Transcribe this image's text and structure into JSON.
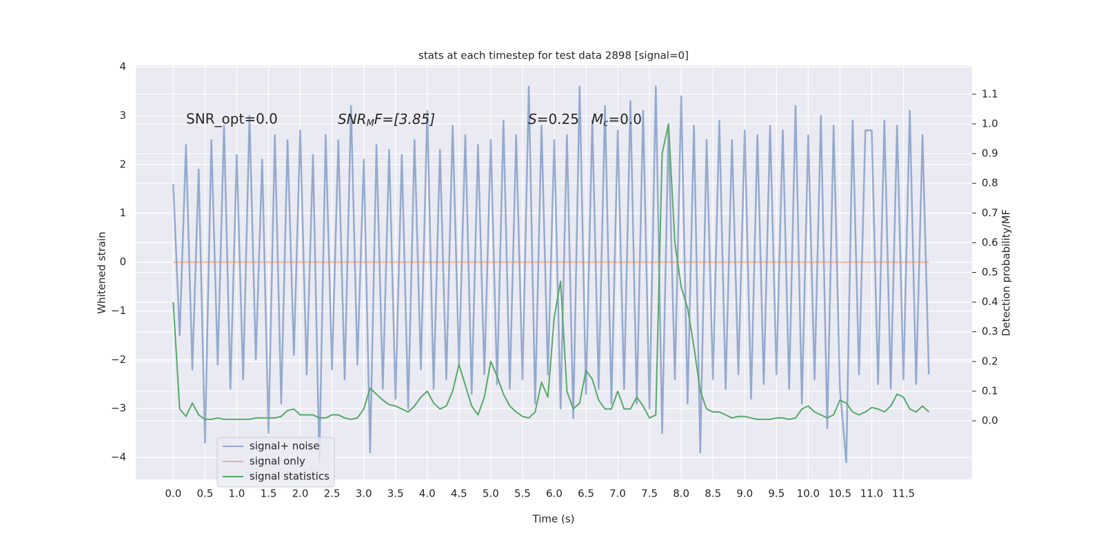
{
  "chart_data": {
    "type": "line",
    "title": "stats at each timestep for test data 2898 [signal=0]",
    "xlabel": "Time (s)",
    "ylabel": "Whitened strain",
    "y2label": "Detection probability/MF",
    "annotations": {
      "snr_opt": "SNR_opt=0.0",
      "snr_mf": [
        "SNR",
        "M",
        "F=[3.85]"
      ],
      "s": [
        "S",
        "=0.25"
      ],
      "mc": [
        "M",
        "c",
        "=0.0"
      ]
    },
    "x": [
      0,
      0.1,
      0.2,
      0.3,
      0.4,
      0.5,
      0.6,
      0.7,
      0.8,
      0.9,
      1.0,
      1.1,
      1.2,
      1.3,
      1.4,
      1.5,
      1.6,
      1.7,
      1.8,
      1.9,
      2.0,
      2.1,
      2.2,
      2.3,
      2.4,
      2.5,
      2.6,
      2.7,
      2.8,
      2.9,
      3.0,
      3.1,
      3.2,
      3.3,
      3.4,
      3.5,
      3.6,
      3.7,
      3.8,
      3.9,
      4.0,
      4.1,
      4.2,
      4.3,
      4.4,
      4.5,
      4.6,
      4.7,
      4.8,
      4.9,
      5.0,
      5.1,
      5.2,
      5.3,
      5.4,
      5.5,
      5.6,
      5.7,
      5.8,
      5.9,
      6.0,
      6.1,
      6.2,
      6.3,
      6.4,
      6.5,
      6.6,
      6.7,
      6.8,
      6.9,
      7.0,
      7.1,
      7.2,
      7.3,
      7.4,
      7.5,
      7.6,
      7.7,
      7.8,
      7.9,
      8.0,
      8.1,
      8.2,
      8.3,
      8.4,
      8.5,
      8.6,
      8.7,
      8.8,
      8.9,
      9.0,
      9.1,
      9.2,
      9.3,
      9.4,
      9.5,
      9.6,
      9.7,
      9.8,
      9.9,
      10.0,
      10.1,
      10.2,
      10.3,
      10.4,
      10.5,
      10.6,
      10.7,
      10.8,
      10.9,
      11.0,
      11.1,
      11.2,
      11.3,
      11.4,
      11.5,
      11.6,
      11.7,
      11.8,
      11.9
    ],
    "series": [
      {
        "name": "signal+ noise",
        "color": "#4c72b0",
        "values": [
          1.6,
          -1.5,
          2.4,
          -2.2,
          1.9,
          -3.7,
          2.5,
          -2.1,
          2.8,
          -2.6,
          2.2,
          -2.4,
          3.0,
          -2.0,
          2.1,
          -3.5,
          2.6,
          -2.9,
          2.5,
          -1.9,
          2.7,
          -2.3,
          2.2,
          -4.1,
          2.6,
          -2.2,
          2.5,
          -2.4,
          3.2,
          -2.1,
          2.1,
          -3.9,
          2.4,
          -2.6,
          2.3,
          -2.8,
          2.2,
          -3.0,
          2.5,
          -2.2,
          3.1,
          -2.6,
          2.3,
          -2.4,
          2.8,
          -2.1,
          2.6,
          -2.7,
          2.4,
          -2.3,
          2.5,
          -2.5,
          2.9,
          -2.6,
          2.6,
          -2.4,
          3.6,
          -2.9,
          2.8,
          -2.3,
          2.5,
          -3.0,
          2.6,
          -3.2,
          3.6,
          -2.7,
          2.9,
          -2.6,
          3.2,
          -2.9,
          2.7,
          -2.6,
          3.3,
          -2.9,
          3.1,
          -3.0,
          3.6,
          -3.5,
          2.7,
          -2.4,
          3.4,
          -2.9,
          2.8,
          -3.9,
          2.5,
          -2.4,
          2.9,
          -2.6,
          2.5,
          -2.3,
          2.7,
          -2.8,
          2.6,
          -2.5,
          2.8,
          -2.3,
          2.7,
          -2.6,
          3.2,
          -2.9,
          2.6,
          -2.4,
          3.0,
          -3.4,
          2.8,
          -2.6,
          -4.1,
          2.9,
          -2.3,
          2.7,
          2.7,
          -2.5,
          2.9,
          -2.6,
          2.8,
          -2.4,
          3.1,
          -2.5,
          2.6,
          -2.3
        ]
      },
      {
        "name": "signal only",
        "color": "#dd8452",
        "values": [
          0,
          0,
          0,
          0,
          0,
          0,
          0,
          0,
          0,
          0,
          0,
          0,
          0,
          0,
          0,
          0,
          0,
          0,
          0,
          0,
          0,
          0,
          0,
          0,
          0,
          0,
          0,
          0,
          0,
          0,
          0,
          0,
          0,
          0,
          0,
          0,
          0,
          0,
          0,
          0,
          0,
          0,
          0,
          0,
          0,
          0,
          0,
          0,
          0,
          0,
          0,
          0,
          0,
          0,
          0,
          0,
          0,
          0,
          0,
          0,
          0,
          0,
          0,
          0,
          0,
          0,
          0,
          0,
          0,
          0,
          0,
          0,
          0,
          0,
          0,
          0,
          0,
          0,
          0,
          0,
          0,
          0,
          0,
          0,
          0,
          0,
          0,
          0,
          0,
          0,
          0,
          0,
          0,
          0,
          0,
          0,
          0,
          0,
          0,
          0,
          0,
          0,
          0,
          0,
          0,
          0,
          0,
          0,
          0,
          0,
          0,
          0,
          0,
          0,
          0,
          0,
          0,
          0,
          0,
          0
        ]
      },
      {
        "name": "signal statistics",
        "color": "#55a868",
        "axis": "y2",
        "values": [
          0.4,
          0.04,
          0.015,
          0.06,
          0.02,
          0.005,
          0.005,
          0.01,
          0.005,
          0.005,
          0.005,
          0.005,
          0.005,
          0.01,
          0.01,
          0.01,
          0.01,
          0.015,
          0.035,
          0.04,
          0.02,
          0.02,
          0.02,
          0.01,
          0.01,
          0.02,
          0.02,
          0.01,
          0.005,
          0.01,
          0.04,
          0.11,
          0.09,
          0.07,
          0.055,
          0.05,
          0.04,
          0.03,
          0.05,
          0.08,
          0.1,
          0.06,
          0.04,
          0.05,
          0.1,
          0.19,
          0.12,
          0.05,
          0.02,
          0.08,
          0.2,
          0.15,
          0.09,
          0.05,
          0.03,
          0.015,
          0.01,
          0.03,
          0.13,
          0.08,
          0.35,
          0.47,
          0.1,
          0.04,
          0.06,
          0.17,
          0.14,
          0.07,
          0.04,
          0.04,
          0.1,
          0.04,
          0.04,
          0.08,
          0.05,
          0.01,
          0.02,
          0.9,
          1.0,
          0.6,
          0.45,
          0.38,
          0.25,
          0.1,
          0.04,
          0.03,
          0.03,
          0.02,
          0.01,
          0.015,
          0.015,
          0.01,
          0.005,
          0.005,
          0.005,
          0.01,
          0.01,
          0.005,
          0.01,
          0.04,
          0.05,
          0.03,
          0.02,
          0.01,
          0.02,
          0.07,
          0.06,
          0.03,
          0.02,
          0.03,
          0.045,
          0.04,
          0.03,
          0.05,
          0.09,
          0.08,
          0.04,
          0.03,
          0.05,
          0.03
        ]
      }
    ],
    "xlim": [
      -0.59,
      12.58
    ],
    "xticks": [
      {
        "value": 0,
        "label": "0.0"
      },
      0.5,
      {
        "value": 1,
        "label": "1.0"
      },
      1.5,
      {
        "value": 2,
        "label": "2.0"
      },
      2.5,
      {
        "value": 3,
        "label": "3.0"
      },
      3.5,
      {
        "value": 4,
        "label": "4.0"
      },
      4.5,
      {
        "value": 5,
        "label": "5.0"
      },
      5.5,
      {
        "value": 6,
        "label": "6.0"
      },
      6.5,
      {
        "value": 7,
        "label": "7.0"
      },
      7.5,
      {
        "value": 8,
        "label": "8.0"
      },
      8.5,
      {
        "value": 9,
        "label": "9.0"
      },
      9.5,
      {
        "value": 10,
        "label": "10.0"
      },
      10.5,
      {
        "value": 11,
        "label": "11.0"
      },
      11.5
    ],
    "ylim": [
      -4.45,
      4.03
    ],
    "yticks": [
      {
        "value": -4,
        "label": "−4"
      },
      {
        "value": -3,
        "label": "−3"
      },
      {
        "value": -2,
        "label": "−2"
      },
      {
        "value": -1,
        "label": "−1"
      },
      0,
      1,
      2,
      3,
      4
    ],
    "y2lim": [
      -0.197,
      1.197
    ],
    "y2ticks": [
      {
        "value": 0,
        "label": "0.0"
      },
      0.1,
      0.2,
      0.3,
      0.4,
      0.5,
      0.6,
      0.7,
      0.8,
      0.9,
      {
        "value": 1,
        "label": "1.0"
      },
      1.1
    ],
    "grid": true,
    "legend": "lower left"
  }
}
